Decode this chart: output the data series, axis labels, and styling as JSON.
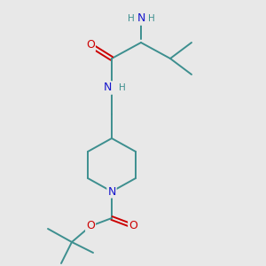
{
  "background_color": "#e8e8e8",
  "atom_colors": {
    "C": "#3d8f8f",
    "N": "#1414cc",
    "O": "#cc0000",
    "H": "#3d8f8f"
  },
  "bond_color": "#3d8f8f",
  "figsize": [
    3.0,
    3.0
  ],
  "dpi": 100,
  "xlim": [
    0,
    10
  ],
  "ylim": [
    0,
    10
  ]
}
